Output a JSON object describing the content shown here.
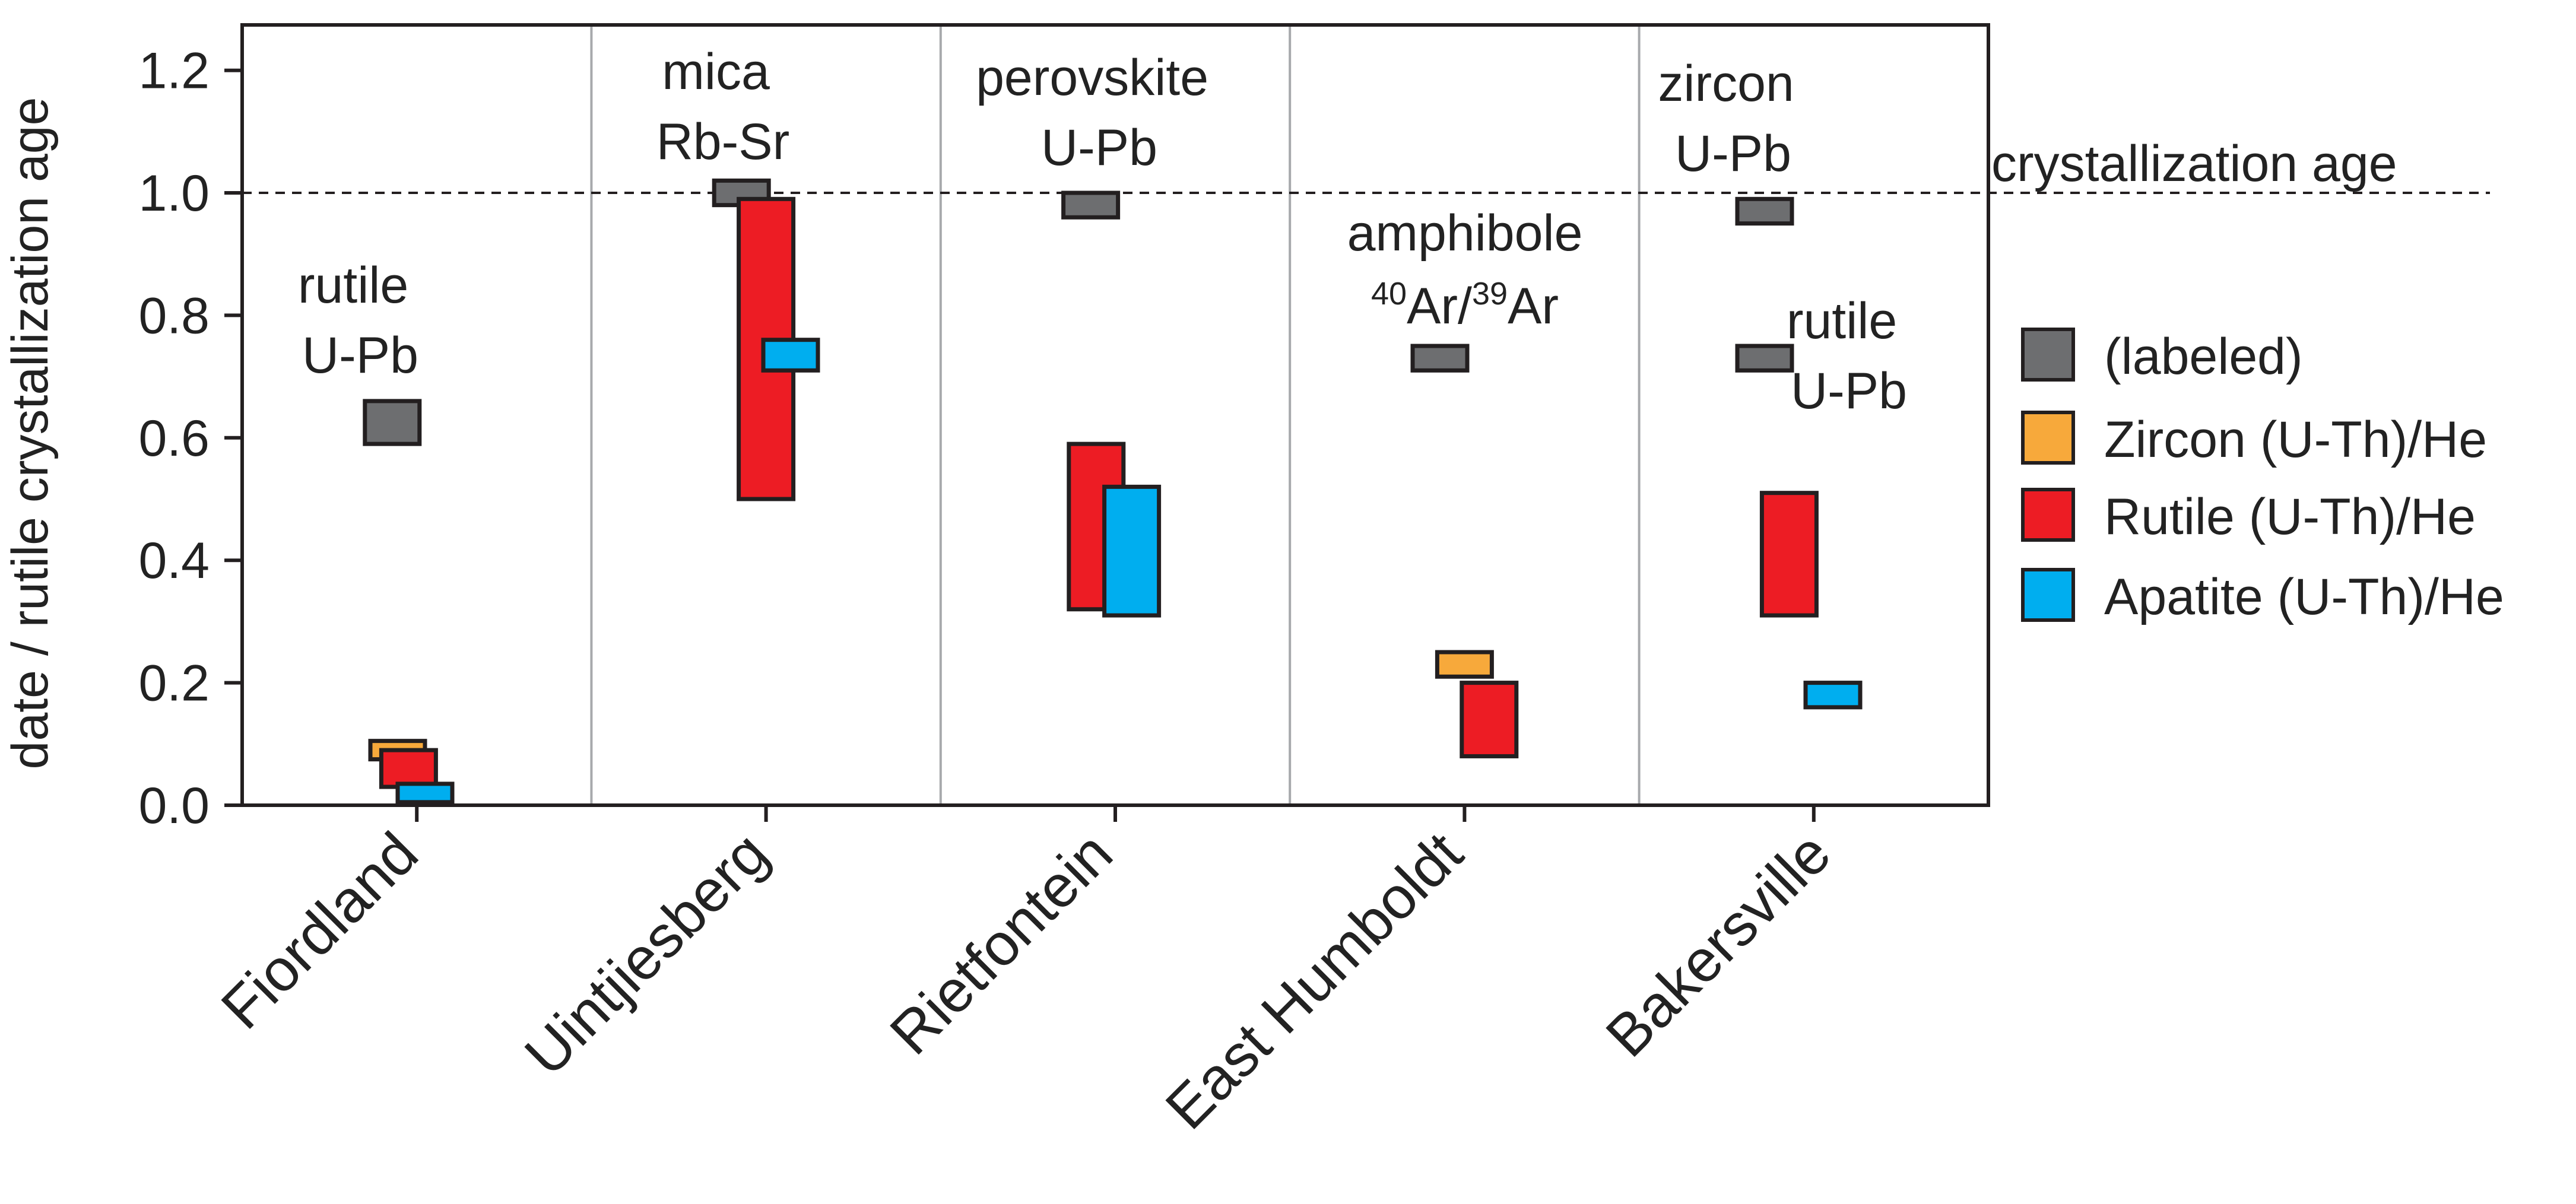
{
  "chart_data": {
    "type": "bar",
    "categories": [
      "Fiordland",
      "Uintjiesberg",
      "Rietfontein",
      "East Humboldt",
      "Bakersville"
    ],
    "ylabel": "date / rutile crystallization age",
    "ylim": [
      0,
      1.25
    ],
    "yticks": [
      "0.0",
      "0.2",
      "0.4",
      "0.6",
      "0.8",
      "1.0",
      "1.2"
    ],
    "reference_line": {
      "value": 1.0,
      "label": "crystallization age"
    },
    "colors": {
      "labeled": "#6d6e70",
      "zircon": "#f7a93b",
      "rutile": "#ed1c24",
      "apatite": "#00aeef",
      "edge": "#231f20",
      "separator": "#a7a9ac"
    },
    "legend": {
      "position": "right",
      "entries": [
        {
          "key": "labeled",
          "label": "(labeled)"
        },
        {
          "key": "zircon",
          "label": "Zircon (U-Th)/He"
        },
        {
          "key": "rutile",
          "label": "Rutile (U-Th)/He"
        },
        {
          "key": "apatite",
          "label": "Apatite (U-Th)/He"
        }
      ]
    },
    "ranges": [
      {
        "site": "Fiordland",
        "series": "labeled",
        "offset": -0.45,
        "low": 0.59,
        "high": 0.66
      },
      {
        "site": "Fiordland",
        "series": "zircon",
        "offset": -0.35,
        "low": 0.075,
        "high": 0.105
      },
      {
        "site": "Fiordland",
        "series": "rutile",
        "offset": -0.15,
        "low": 0.03,
        "high": 0.09
      },
      {
        "site": "Fiordland",
        "series": "apatite",
        "offset": 0.15,
        "low": 0.005,
        "high": 0.035
      },
      {
        "site": "Uintjiesberg",
        "series": "labeled",
        "offset": -0.45,
        "low": 0.98,
        "high": 1.02
      },
      {
        "site": "Uintjiesberg",
        "series": "rutile",
        "offset": 0.0,
        "low": 0.5,
        "high": 0.99
      },
      {
        "site": "Uintjiesberg",
        "series": "apatite",
        "offset": 0.45,
        "low": 0.71,
        "high": 0.76
      },
      {
        "site": "Rietfontein",
        "series": "labeled",
        "offset": -0.45,
        "low": 0.96,
        "high": 1.0
      },
      {
        "site": "Rietfontein",
        "series": "rutile",
        "offset": -0.35,
        "low": 0.32,
        "high": 0.59
      },
      {
        "site": "Rietfontein",
        "series": "apatite",
        "offset": 0.3,
        "low": 0.31,
        "high": 0.52
      },
      {
        "site": "East Humboldt",
        "series": "labeled",
        "offset": -0.45,
        "low": 0.71,
        "high": 0.75
      },
      {
        "site": "East Humboldt",
        "series": "zircon",
        "offset": 0.0,
        "low": 0.21,
        "high": 0.25
      },
      {
        "site": "East Humboldt",
        "series": "rutile",
        "offset": 0.45,
        "low": 0.08,
        "high": 0.2
      },
      {
        "site": "Bakersville",
        "series": "labeled",
        "offset": -0.9,
        "low": 0.95,
        "high": 0.99
      },
      {
        "site": "Bakersville",
        "series": "labeled",
        "offset": -0.9,
        "low": 0.71,
        "high": 0.75
      },
      {
        "site": "Bakersville",
        "series": "rutile",
        "offset": -0.45,
        "low": 0.31,
        "high": 0.51
      },
      {
        "site": "Bakersville",
        "series": "apatite",
        "offset": 0.35,
        "low": 0.16,
        "high": 0.2
      }
    ],
    "annotations": [
      {
        "site": "Fiordland",
        "lines": [
          "rutile",
          "U-Pb"
        ]
      },
      {
        "site": "Uintjiesberg",
        "lines": [
          "mica",
          "Rb-Sr"
        ]
      },
      {
        "site": "Rietfontein",
        "lines": [
          "perovskite",
          "U-Pb"
        ]
      },
      {
        "site": "East Humboldt",
        "lines": [
          "amphibole",
          "40Ar/39Ar"
        ]
      },
      {
        "site": "Bakersville",
        "lines": [
          "zircon",
          "U-Pb"
        ]
      },
      {
        "site": "Bakersville",
        "lines": [
          "rutile",
          "U-Pb"
        ]
      }
    ]
  }
}
